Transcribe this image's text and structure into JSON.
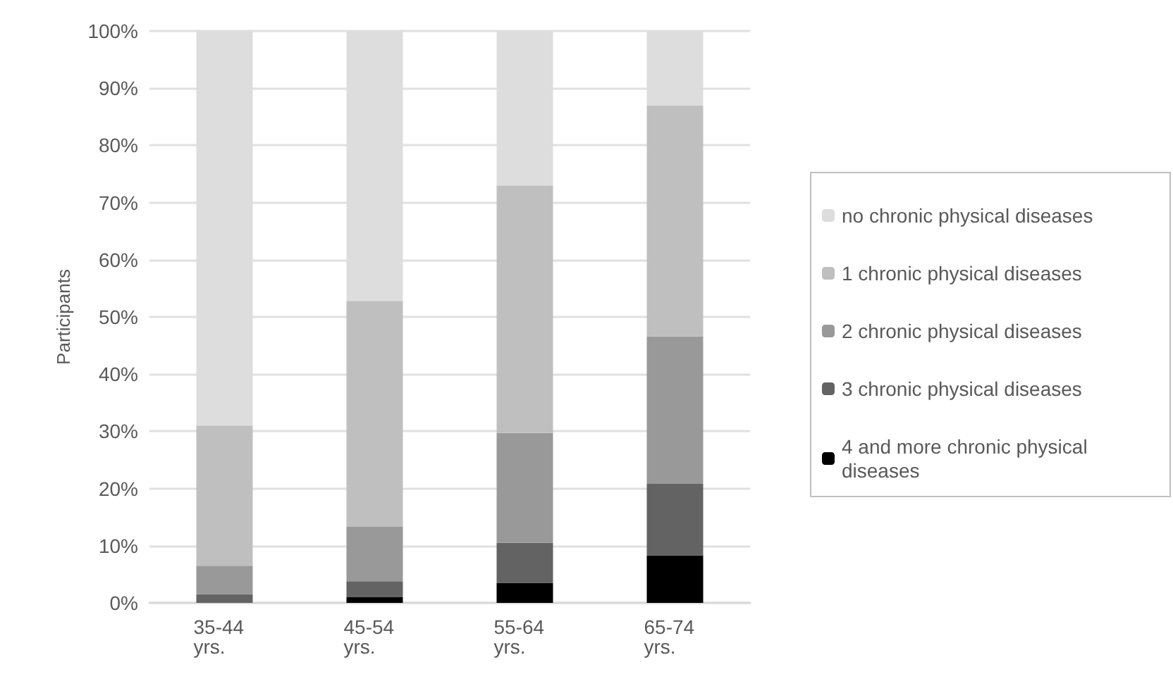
{
  "chart_data": {
    "type": "bar",
    "ylabel": "Participants",
    "categories": [
      "35-44 yrs.",
      "45-54 yrs.",
      "55-64 yrs.",
      "65-74 yrs."
    ],
    "stacked": true,
    "ylim": [
      0,
      100
    ],
    "yticks": [
      {
        "value": 0,
        "label": "0%"
      },
      {
        "value": 10,
        "label": "10%"
      },
      {
        "value": 20,
        "label": "20%"
      },
      {
        "value": 30,
        "label": "30%"
      },
      {
        "value": 40,
        "label": "40%"
      },
      {
        "value": 50,
        "label": "50%"
      },
      {
        "value": 60,
        "label": "60%"
      },
      {
        "value": 70,
        "label": "70%"
      },
      {
        "value": 80,
        "label": "80%"
      },
      {
        "value": 90,
        "label": "90%"
      },
      {
        "value": 100,
        "label": "100%"
      }
    ],
    "grid": "y",
    "legend": "right",
    "series": [
      {
        "name": "4 and more chronic physical diseases",
        "color": "#000000",
        "values": [
          0,
          1,
          3.5,
          8.3
        ]
      },
      {
        "name": "3 chronic physical diseases",
        "color": "#636363",
        "values": [
          1.5,
          2.8,
          7,
          12.5
        ]
      },
      {
        "name": "2 chronic physical diseases",
        "color": "#999999",
        "values": [
          5,
          9.5,
          19.2,
          25.8
        ]
      },
      {
        "name": "1 chronic physical diseases",
        "color": "#bfbfbf",
        "values": [
          24.5,
          39.5,
          43.3,
          40.4
        ]
      },
      {
        "name": "no chronic physical diseases",
        "color": "#dcdddc",
        "values": [
          69,
          47.2,
          27,
          13
        ]
      }
    ]
  }
}
